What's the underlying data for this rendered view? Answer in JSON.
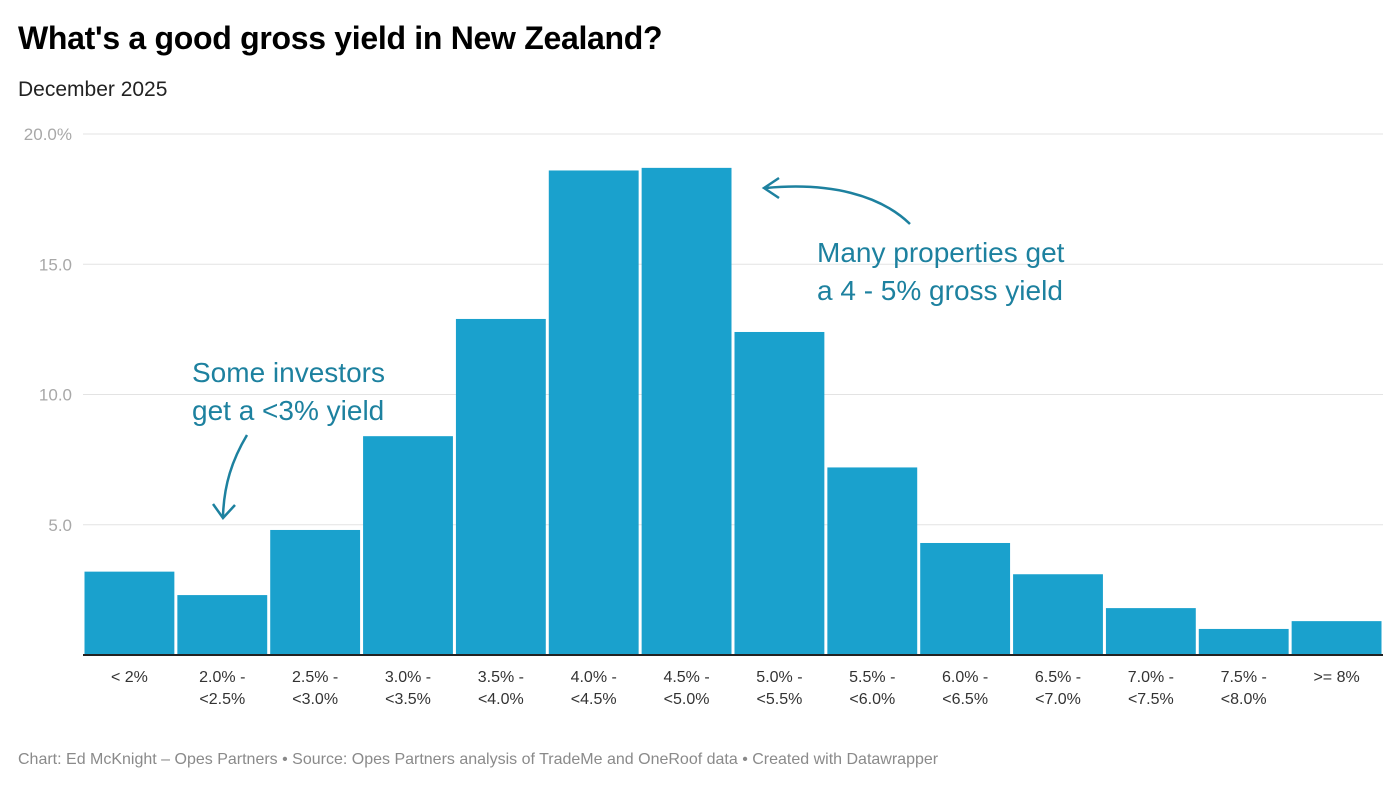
{
  "title": "What's a good gross yield in New Zealand?",
  "subtitle": "December 2025",
  "footer": "Chart: Ed McKnight – Opes Partners • Source: Opes Partners analysis of TradeMe and OneRoof data • Created with Datawrapper",
  "chart_data": {
    "type": "bar",
    "title": "What's a good gross yield in New Zealand?",
    "subtitle": "December 2025",
    "xlabel": "",
    "ylabel": "",
    "ylim": [
      0,
      20
    ],
    "yticks": [
      5,
      10,
      15,
      20
    ],
    "ytick_labels": [
      "5.0",
      "10.0",
      "15.0",
      "20.0%"
    ],
    "grid": true,
    "bar_color": "#1aa1cd",
    "annotation_color": "#1d819f",
    "categories": [
      [
        "< 2%"
      ],
      [
        "2.0% -",
        "<2.5%"
      ],
      [
        "2.5% -",
        "<3.0%"
      ],
      [
        "3.0% -",
        "<3.5%"
      ],
      [
        "3.5% -",
        "<4.0%"
      ],
      [
        "4.0% -",
        "<4.5%"
      ],
      [
        "4.5% -",
        "<5.0%"
      ],
      [
        "5.0% -",
        "<5.5%"
      ],
      [
        "5.5% -",
        "<6.0%"
      ],
      [
        "6.0% -",
        "<6.5%"
      ],
      [
        "6.5% -",
        "<7.0%"
      ],
      [
        "7.0% -",
        "<7.5%"
      ],
      [
        "7.5% -",
        "<8.0%"
      ],
      [
        ">= 8%"
      ]
    ],
    "values": [
      3.2,
      2.3,
      4.8,
      8.4,
      12.9,
      18.6,
      18.7,
      12.4,
      7.2,
      4.3,
      3.1,
      1.8,
      1.0,
      1.3
    ],
    "annotations": [
      {
        "lines": [
          "Some investors",
          "get a <3% yield"
        ],
        "points_to": "2.0% - <2.5%"
      },
      {
        "lines": [
          "Many properties get",
          "a 4 - 5% gross yield"
        ],
        "points_to": "4.5% - <5.0%"
      }
    ]
  }
}
